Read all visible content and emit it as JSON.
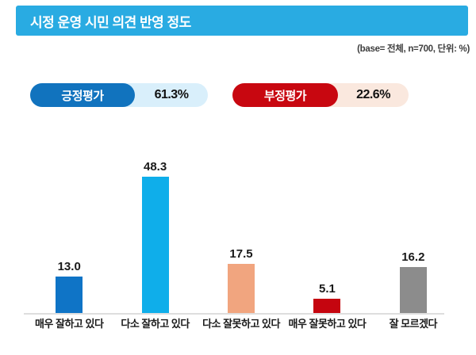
{
  "title": "시정 운영 시민 의견 반영 정도",
  "base_note": "(base= 전체, n=700, 단위: %)",
  "summary": {
    "positive": {
      "label": "긍정평가",
      "value": "61.3%"
    },
    "negative": {
      "label": "부정평가",
      "value": "22.6%"
    }
  },
  "colors": {
    "title_bar": "#29ABE2",
    "positive_badge": "#1173BE",
    "positive_pill_bg": "#D9EFFB",
    "negative_badge": "#C80710",
    "negative_pill_bg": "#FAE8DE",
    "axis_line": "#DEDEDE",
    "text_dark": "#1A1A1A"
  },
  "chart_data": {
    "type": "bar",
    "title": "시정 운영 시민 의견 반영 정도",
    "categories": [
      "매우 잘하고 있다",
      "다소 잘하고 있다",
      "다소 잘못하고 있다",
      "매우 잘못하고 있다",
      "잘 모르겠다"
    ],
    "values": [
      13.0,
      48.3,
      17.5,
      5.1,
      16.2
    ],
    "value_labels": [
      "13.0",
      "48.3",
      "17.5",
      "5.1",
      "16.2"
    ],
    "bar_colors": [
      "#0F74C6",
      "#0FAEEA",
      "#F1A57F",
      "#C5050F",
      "#8C8C8C"
    ],
    "unit": "%",
    "base": "전체, n=700",
    "xlabel": "",
    "ylabel": "",
    "ylim": [
      0,
      55
    ],
    "grid": false,
    "legend": "none"
  }
}
